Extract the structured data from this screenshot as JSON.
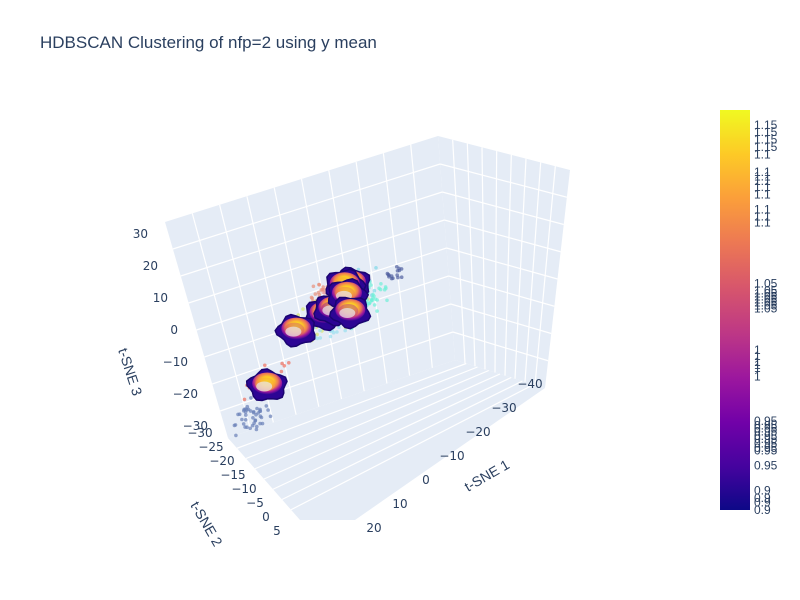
{
  "title": "HDBSCAN Clustering of nfp=2 using y mean",
  "chart_data": {
    "type": "scatter3d",
    "title": "HDBSCAN Clustering of nfp=2 using y mean",
    "axes": {
      "x": {
        "label": "t-SNE 1",
        "ticks": [
          "−40",
          "−30",
          "−20",
          "−10",
          "0",
          "10",
          "20"
        ],
        "range": [
          -45,
          25
        ]
      },
      "y": {
        "label": "t-SNE 2",
        "ticks": [
          "−30",
          "−25",
          "−20",
          "−15",
          "−10",
          "−5",
          "0",
          "5"
        ],
        "range": [
          -30,
          8
        ]
      },
      "z": {
        "label": "t-SNE 3",
        "ticks": [
          "30",
          "20",
          "10",
          "0",
          "−10",
          "−20",
          "−30"
        ],
        "range": [
          -30,
          30
        ]
      }
    },
    "grid": true,
    "background": "#e5ecf6",
    "colorbar": {
      "colorscale": [
        "#0d0887",
        "#46039f",
        "#7201a8",
        "#9c179e",
        "#bd3786",
        "#d8576b",
        "#ed7953",
        "#fb9f3a",
        "#fdca26",
        "#f0f921"
      ],
      "range": [
        0.9,
        1.17
      ],
      "ticks": [
        [
          "1.15",
          1.15
        ],
        [
          "1.15",
          1.155
        ],
        [
          "1.15",
          1.16
        ],
        [
          "1.15",
          1.145
        ],
        [
          "1.1",
          1.14
        ],
        [
          "1.1",
          1.128
        ],
        [
          "1.1",
          1.125
        ],
        [
          "1.1",
          1.122
        ],
        [
          "1.1",
          1.118
        ],
        [
          "1.1",
          1.113
        ],
        [
          "1.1",
          1.103
        ],
        [
          "1.1",
          1.098
        ],
        [
          "1.1",
          1.094
        ],
        [
          "1.05",
          1.053
        ],
        [
          "1.05",
          1.048
        ],
        [
          "1.05",
          1.046
        ],
        [
          "1.05",
          1.044
        ],
        [
          "1.05",
          1.042
        ],
        [
          "1.05",
          1.04
        ],
        [
          "1.05",
          1.038
        ],
        [
          "1.05",
          1.036
        ],
        [
          "1",
          1.008
        ],
        [
          "1",
          1.004
        ],
        [
          "1",
          1.0
        ],
        [
          "1",
          0.998
        ],
        [
          "1",
          0.996
        ],
        [
          "1",
          0.99
        ],
        [
          "0.95",
          0.96
        ],
        [
          "0.95",
          0.957
        ],
        [
          "0.95",
          0.955
        ],
        [
          "0.95",
          0.953
        ],
        [
          "0.95",
          0.95
        ],
        [
          "0.95",
          0.948
        ],
        [
          "0.95",
          0.945
        ],
        [
          "0.95",
          0.942
        ],
        [
          "0.95",
          0.94
        ],
        [
          "0.95",
          0.93
        ],
        [
          "0.9",
          0.913
        ],
        [
          "0.9",
          0.908
        ],
        [
          "0.9",
          0.905
        ],
        [
          "0.9",
          0.9
        ]
      ]
    },
    "clusters": [
      {
        "color": "#e8a0a0",
        "x": -5,
        "y": -20,
        "z": 18,
        "spread": 4,
        "count": 40
      },
      {
        "color": "#e8907a",
        "x": 0,
        "y": -15,
        "z": 20,
        "spread": 3,
        "count": 25
      },
      {
        "color": "#d8e870",
        "x": -10,
        "y": -10,
        "z": 12,
        "spread": 5,
        "count": 35
      },
      {
        "color": "#f07060",
        "x": 10,
        "y": -5,
        "z": -5,
        "spread": 4,
        "count": 35
      },
      {
        "color": "#6a80b8",
        "x": 12,
        "y": -2,
        "z": -15,
        "spread": 4,
        "count": 45
      },
      {
        "color": "#80d8e8",
        "x": -25,
        "y": -5,
        "z": 15,
        "spread": 5,
        "count": 55
      },
      {
        "color": "#70f0d8",
        "x": -40,
        "y": 0,
        "z": 10,
        "spread": 5,
        "count": 80
      },
      {
        "color": "#9ae0f0",
        "x": -30,
        "y": 3,
        "z": 5,
        "spread": 3,
        "count": 20
      },
      {
        "color": "#5060a0",
        "x": -18,
        "y": -25,
        "z": 18,
        "spread": 2,
        "count": 15
      }
    ],
    "surfaces": [
      {
        "x": -2,
        "y": -22,
        "z": 20,
        "value": 1.1
      },
      {
        "x": -5,
        "y": -18,
        "z": 20,
        "value": 1.12
      },
      {
        "x": -5,
        "y": -12,
        "z": 12,
        "value": 1.08
      },
      {
        "x": 5,
        "y": -10,
        "z": 10,
        "value": 1.05
      },
      {
        "x": 10,
        "y": -5,
        "z": -6,
        "value": 1.1
      },
      {
        "x": -18,
        "y": -6,
        "z": 12,
        "value": 1.0
      },
      {
        "x": -30,
        "y": -2,
        "z": 15,
        "value": 1.08
      },
      {
        "x": -38,
        "y": 2,
        "z": 8,
        "value": 1.02
      }
    ]
  }
}
